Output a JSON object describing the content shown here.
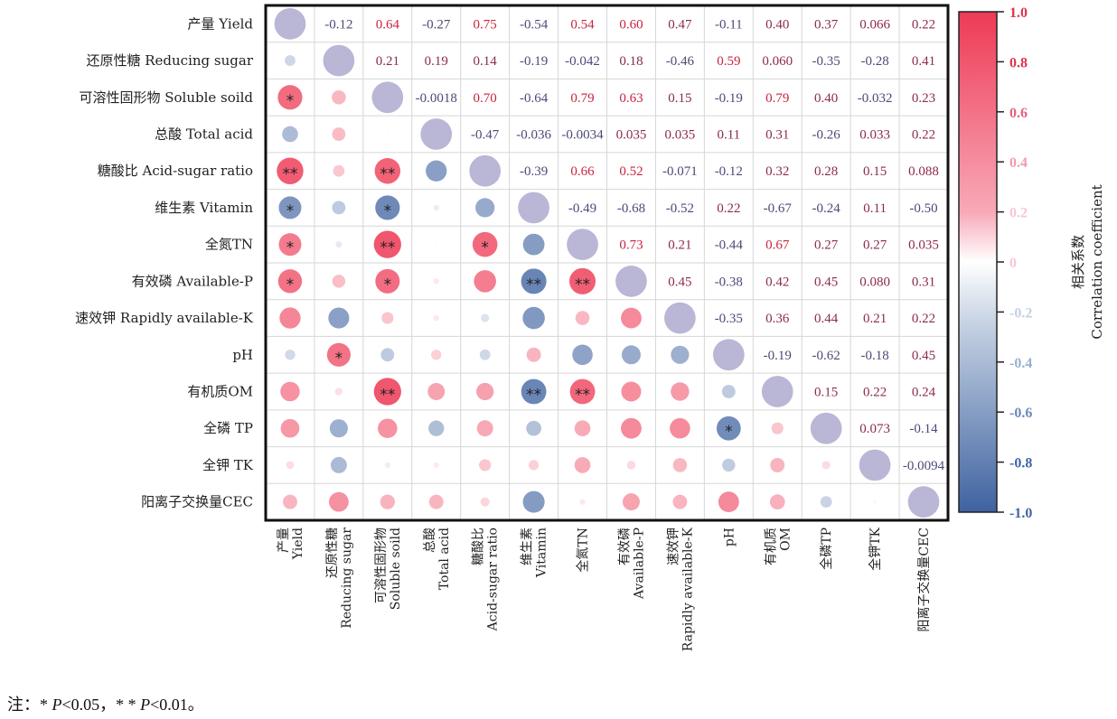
{
  "chart_data": {
    "type": "heatmap",
    "subtype": "correlation-matrix-circles",
    "variables": [
      {
        "zh": "产量",
        "en": "Yield",
        "row_label": "产量 Yield",
        "col_label": [
          "产量",
          "Yield"
        ]
      },
      {
        "zh": "还原性糖",
        "en": "Reducing sugar",
        "row_label": "还原性糖 Reducing sugar",
        "col_label": [
          "还原性糖",
          "Reducing sugar"
        ]
      },
      {
        "zh": "可溶性固形物",
        "en": "Soluble soild",
        "row_label": "可溶性固形物 Soluble soild",
        "col_label": [
          "可溶性固形物",
          "Soluble soild"
        ]
      },
      {
        "zh": "总酸",
        "en": "Total acid",
        "row_label": "总酸 Total acid",
        "col_label": [
          "总酸",
          "Total acid"
        ]
      },
      {
        "zh": "糖酸比",
        "en": "Acid-sugar ratio",
        "row_label": "糖酸比 Acid-sugar ratio",
        "col_label": [
          "糖酸比",
          "Acid-sugar ratio"
        ]
      },
      {
        "zh": "维生素",
        "en": "Vitamin",
        "row_label": "维生素 Vitamin",
        "col_label": [
          "维生素",
          "Vitamin"
        ]
      },
      {
        "zh": "全氮",
        "en": "TN",
        "row_label": "全氮TN",
        "col_label": [
          "全氮TN"
        ]
      },
      {
        "zh": "有效磷",
        "en": "Available-P",
        "row_label": "有效磷 Available-P",
        "col_label": [
          "有效磷",
          "Available-P"
        ]
      },
      {
        "zh": "速效钾",
        "en": "Rapidly available-K",
        "row_label": "速效钾 Rapidly available-K",
        "col_label": [
          "速效钾",
          "Rapidly available-K"
        ]
      },
      {
        "zh": "",
        "en": "pH",
        "row_label": "pH",
        "col_label": [
          "pH"
        ]
      },
      {
        "zh": "有机质",
        "en": "OM",
        "row_label": "有机质OM",
        "col_label": [
          "有机质",
          "OM"
        ]
      },
      {
        "zh": "全磷",
        "en": "TP",
        "row_label": "全磷 TP",
        "col_label": [
          "全磷TP"
        ]
      },
      {
        "zh": "全钾",
        "en": "TK",
        "row_label": "全钾 TK",
        "col_label": [
          "全钾TK"
        ]
      },
      {
        "zh": "阳离子交换量",
        "en": "CEC",
        "row_label": "阳离子交换量CEC",
        "col_label": [
          "阳离子交换量CEC"
        ]
      }
    ],
    "upper_triangle_labels": [
      [
        null,
        "-0.12",
        "0.64",
        "-0.27",
        "0.75",
        "-0.54",
        "0.54",
        "0.60",
        "0.47",
        "-0.11",
        "0.40",
        "0.37",
        "0.066",
        "0.22"
      ],
      [
        null,
        null,
        "0.21",
        "0.19",
        "0.14",
        "-0.19",
        "-0.042",
        "0.18",
        "-0.46",
        "0.59",
        "0.060",
        "-0.35",
        "-0.28",
        "0.41"
      ],
      [
        null,
        null,
        null,
        "-0.0018",
        "0.70",
        "-0.64",
        "0.79",
        "0.63",
        "0.15",
        "-0.19",
        "0.79",
        "0.40",
        "-0.032",
        "0.23"
      ],
      [
        null,
        null,
        null,
        null,
        "-0.47",
        "-0.036",
        "-0.0034",
        "0.035",
        "0.035",
        "0.11",
        "0.31",
        "-0.26",
        "0.033",
        "0.22"
      ],
      [
        null,
        null,
        null,
        null,
        null,
        "-0.39",
        "0.66",
        "0.52",
        "-0.071",
        "-0.12",
        "0.32",
        "0.28",
        "0.15",
        "0.088"
      ],
      [
        null,
        null,
        null,
        null,
        null,
        null,
        "-0.49",
        "-0.68",
        "-0.52",
        "0.22",
        "-0.67",
        "-0.24",
        "0.11",
        "-0.50"
      ],
      [
        null,
        null,
        null,
        null,
        null,
        null,
        null,
        "0.73",
        "0.21",
        "-0.44",
        "0.67",
        "0.27",
        "0.27",
        "0.035"
      ],
      [
        null,
        null,
        null,
        null,
        null,
        null,
        null,
        null,
        "0.45",
        "-0.38",
        "0.42",
        "0.45",
        "0.080",
        "0.31"
      ],
      [
        null,
        null,
        null,
        null,
        null,
        null,
        null,
        null,
        null,
        "-0.35",
        "0.36",
        "0.44",
        "0.21",
        "0.22"
      ],
      [
        null,
        null,
        null,
        null,
        null,
        null,
        null,
        null,
        null,
        null,
        "-0.19",
        "-0.62",
        "-0.18",
        "0.45"
      ],
      [
        null,
        null,
        null,
        null,
        null,
        null,
        null,
        null,
        null,
        null,
        null,
        "0.15",
        "0.22",
        "0.24"
      ],
      [
        null,
        null,
        null,
        null,
        null,
        null,
        null,
        null,
        null,
        null,
        null,
        null,
        "0.073",
        "-0.14"
      ],
      [
        null,
        null,
        null,
        null,
        null,
        null,
        null,
        null,
        null,
        null,
        null,
        null,
        null,
        "-0.0094"
      ],
      [
        null,
        null,
        null,
        null,
        null,
        null,
        null,
        null,
        null,
        null,
        null,
        null,
        null,
        null
      ]
    ],
    "significance_lower_triangle": [
      {
        "row": 2,
        "col": 0,
        "mark": "*"
      },
      {
        "row": 4,
        "col": 0,
        "mark": "**"
      },
      {
        "row": 4,
        "col": 2,
        "mark": "**"
      },
      {
        "row": 5,
        "col": 0,
        "mark": "*"
      },
      {
        "row": 5,
        "col": 2,
        "mark": "*"
      },
      {
        "row": 6,
        "col": 0,
        "mark": "*"
      },
      {
        "row": 6,
        "col": 2,
        "mark": "**"
      },
      {
        "row": 6,
        "col": 4,
        "mark": "*"
      },
      {
        "row": 7,
        "col": 0,
        "mark": "*"
      },
      {
        "row": 7,
        "col": 2,
        "mark": "*"
      },
      {
        "row": 7,
        "col": 5,
        "mark": "**"
      },
      {
        "row": 7,
        "col": 6,
        "mark": "**"
      },
      {
        "row": 9,
        "col": 1,
        "mark": "*"
      },
      {
        "row": 10,
        "col": 2,
        "mark": "**"
      },
      {
        "row": 10,
        "col": 5,
        "mark": "**"
      },
      {
        "row": 10,
        "col": 6,
        "mark": "**"
      },
      {
        "row": 11,
        "col": 9,
        "mark": "*"
      }
    ],
    "diagonal_color": "#b9b6d6",
    "grid": true,
    "colorbar": {
      "range": [
        -1.0,
        1.0
      ],
      "ticks": [
        "1.0",
        "0.8",
        "0.6",
        "0.4",
        "0.2",
        "0",
        "-0.2",
        "-0.4",
        "-0.6",
        "-0.8",
        "-1.0"
      ],
      "tick_values": [
        1.0,
        0.8,
        0.6,
        0.4,
        0.2,
        0,
        -0.2,
        -0.4,
        -0.6,
        -0.8,
        -1.0
      ],
      "title_zh": "相关系数",
      "title_en": "Correlation coefficient",
      "colors": {
        "positive": "#ee3a55",
        "zero": "#ffffff",
        "negative": "#3e62a0"
      },
      "placement": "right"
    },
    "title": "",
    "xlabel": "",
    "ylabel": ""
  },
  "footnote": {
    "prefix": "注：",
    "sig1_star": "* ",
    "sig1_p": "P",
    "sig1_text": "<0.05，",
    "sig2_star": "* * ",
    "sig2_p": "P",
    "sig2_text": "<0.01。"
  }
}
